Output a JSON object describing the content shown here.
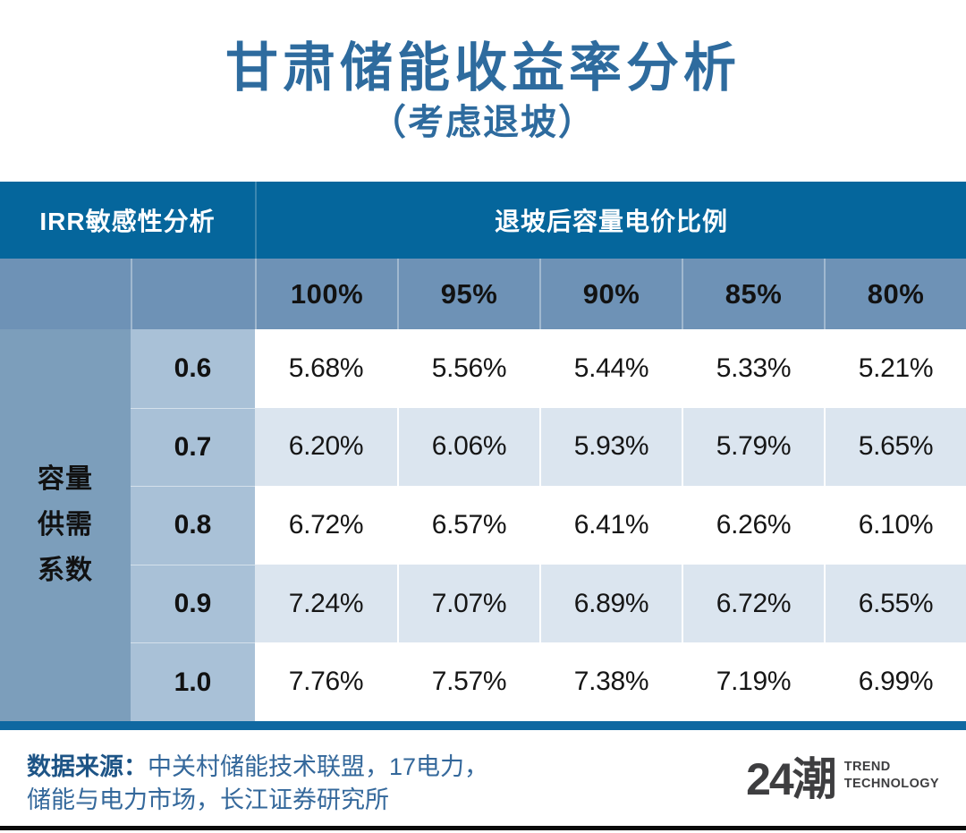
{
  "chart_data": {
    "type": "table",
    "title": "甘肃储能收益率分析",
    "subtitle": "（考虑退坡）",
    "corner_header": "IRR敏感性分析",
    "column_group_header": "退坡后容量电价比例",
    "row_group_header": "容量供需系数",
    "row_group_header_lines": [
      "容量",
      "供需",
      "系数"
    ],
    "columns": [
      "100%",
      "95%",
      "90%",
      "85%",
      "80%"
    ],
    "rows": [
      {
        "label": "0.6",
        "values": [
          "5.68%",
          "5.56%",
          "5.44%",
          "5.33%",
          "5.21%"
        ]
      },
      {
        "label": "0.7",
        "values": [
          "6.20%",
          "6.06%",
          "5.93%",
          "5.79%",
          "5.65%"
        ]
      },
      {
        "label": "0.8",
        "values": [
          "6.72%",
          "6.57%",
          "6.41%",
          "6.26%",
          "6.10%"
        ]
      },
      {
        "label": "0.9",
        "values": [
          "7.24%",
          "7.07%",
          "6.89%",
          "6.72%",
          "6.55%"
        ]
      },
      {
        "label": "1.0",
        "values": [
          "7.76%",
          "7.57%",
          "7.38%",
          "7.19%",
          "6.99%"
        ]
      }
    ]
  },
  "footer": {
    "source_label": "数据来源：",
    "source_line1": "中关村储能技术联盟，17电力，",
    "source_line2": "储能与电力市场，长江证券研究所",
    "logo": {
      "mark": "24潮",
      "sub_line1": "TREND",
      "sub_line2": "TECHNOLOGY"
    }
  },
  "colors": {
    "header_dark_blue": "#05669C",
    "header_slate_blue": "#6E92B6",
    "row_group_column_blue": "#7C9EBB",
    "row_label_column_blue": "#A9C1D7",
    "alt_row_tint": "#DBE5EF",
    "bottom_bar_blue": "#0F68A1",
    "title_blue": "#2E6B9E",
    "footer_text_blue": "#34689B",
    "logo_gray": "#3E3E40"
  }
}
